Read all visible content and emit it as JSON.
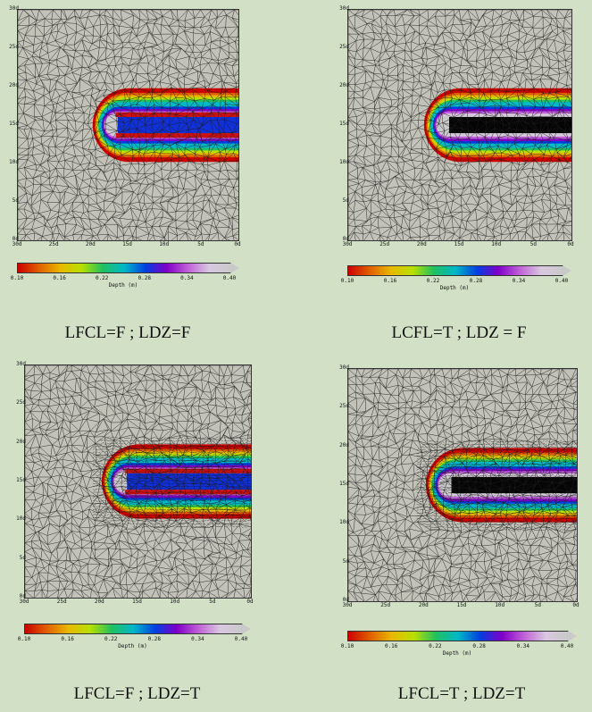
{
  "colors": {
    "background": "#d2e0c6",
    "mesh_fill": "#c2c2b8",
    "mesh_line": "#1e1e1e",
    "colormap": [
      "#cc0000",
      "#e06000",
      "#e8b800",
      "#b8e000",
      "#20c060",
      "#00b8c8",
      "#0040e0",
      "#8000c8",
      "#c060d8",
      "#d8c8e0",
      "#c9c9c9"
    ]
  },
  "axis": {
    "y_ticks": [
      "30d",
      "25d",
      "20d",
      "15d",
      "10d",
      "5d",
      "0d"
    ],
    "x_ticks": [
      "30d",
      "25d",
      "20d",
      "15d",
      "10d",
      "5d",
      "0d"
    ]
  },
  "colorbar": {
    "ticks": [
      "0.10",
      "0.16",
      "0.22",
      "0.28",
      "0.34",
      "0.40"
    ],
    "title": "Depth (m)"
  },
  "panels": [
    {
      "caption": "LFCL=F ; LDZ=F",
      "refined": false,
      "core": "blue"
    },
    {
      "caption": "LCFL=T ; LDZ = F",
      "refined": false,
      "core": "black"
    },
    {
      "caption": "LFCL=F ; LDZ=T",
      "refined": true,
      "core": "blue"
    },
    {
      "caption": "LFCL=T ; LDZ=T",
      "refined": true,
      "core": "black"
    }
  ]
}
